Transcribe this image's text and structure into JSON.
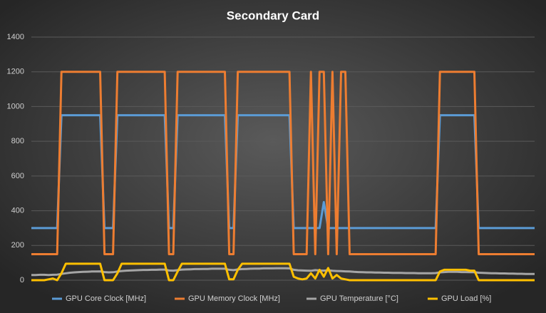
{
  "chart_data": {
    "type": "line",
    "title": "Secondary Card",
    "categories": [
      null,
      null,
      null,
      null,
      null,
      null,
      null,
      null,
      null,
      null,
      null,
      null,
      null,
      null,
      null,
      null,
      null,
      null,
      null,
      null,
      null,
      null,
      null,
      null,
      null,
      null,
      null,
      null,
      null,
      null,
      null,
      null,
      null,
      null,
      null,
      null,
      null,
      null,
      null,
      null,
      null,
      null,
      null,
      null,
      null,
      null,
      null,
      null,
      null,
      null,
      null,
      null,
      null,
      null,
      null,
      null,
      null,
      null,
      null,
      null,
      null,
      null,
      null,
      null,
      null,
      null,
      null,
      null,
      null,
      null,
      null,
      null,
      null,
      null,
      null,
      null,
      null,
      null,
      null,
      null,
      null,
      null,
      null,
      null,
      null,
      null,
      null,
      null,
      null,
      null,
      null,
      null,
      null,
      null,
      null,
      null,
      null,
      null,
      null,
      null,
      null,
      null,
      null,
      null,
      null,
      null,
      null,
      null,
      null,
      null,
      null,
      null,
      null,
      null,
      null,
      null,
      null,
      null
    ],
    "ylim": [
      0,
      1400
    ],
    "yticks": [
      0,
      200,
      400,
      600,
      800,
      1000,
      1200,
      1400
    ],
    "grid": true,
    "legend": "bottom",
    "series": [
      {
        "name": "GPU Core Clock [MHz]",
        "color": "#5b9bd5",
        "values": [
          300,
          300,
          300,
          300,
          300,
          300,
          300,
          950,
          950,
          950,
          950,
          950,
          950,
          950,
          950,
          950,
          950,
          300,
          300,
          300,
          950,
          950,
          950,
          950,
          950,
          950,
          950,
          950,
          950,
          950,
          950,
          950,
          300,
          300,
          950,
          950,
          950,
          950,
          950,
          950,
          950,
          950,
          950,
          950,
          950,
          950,
          300,
          300,
          950,
          950,
          950,
          950,
          950,
          950,
          950,
          950,
          950,
          950,
          950,
          950,
          950,
          300,
          300,
          300,
          300,
          300,
          300,
          300,
          450,
          300,
          300,
          300,
          300,
          300,
          300,
          300,
          300,
          300,
          300,
          300,
          300,
          300,
          300,
          300,
          300,
          300,
          300,
          300,
          300,
          300,
          300,
          300,
          300,
          300,
          300,
          950,
          950,
          950,
          950,
          950,
          950,
          950,
          950,
          950,
          300,
          300,
          300,
          300,
          300,
          300,
          300,
          300,
          300,
          300,
          300,
          300,
          300,
          300
        ]
      },
      {
        "name": "GPU Memory Clock [MHz]",
        "color": "#ed7d31",
        "values": [
          150,
          150,
          150,
          150,
          150,
          150,
          150,
          1200,
          1200,
          1200,
          1200,
          1200,
          1200,
          1200,
          1200,
          1200,
          1200,
          150,
          150,
          150,
          1200,
          1200,
          1200,
          1200,
          1200,
          1200,
          1200,
          1200,
          1200,
          1200,
          1200,
          1200,
          150,
          150,
          1200,
          1200,
          1200,
          1200,
          1200,
          1200,
          1200,
          1200,
          1200,
          1200,
          1200,
          1200,
          150,
          150,
          1200,
          1200,
          1200,
          1200,
          1200,
          1200,
          1200,
          1200,
          1200,
          1200,
          1200,
          1200,
          1200,
          150,
          150,
          150,
          150,
          1200,
          150,
          1200,
          1200,
          150,
          1200,
          150,
          1200,
          1200,
          150,
          150,
          150,
          150,
          150,
          150,
          150,
          150,
          150,
          150,
          150,
          150,
          150,
          150,
          150,
          150,
          150,
          150,
          150,
          150,
          150,
          1200,
          1200,
          1200,
          1200,
          1200,
          1200,
          1200,
          1200,
          1200,
          150,
          150,
          150,
          150,
          150,
          150,
          150,
          150,
          150,
          150,
          150,
          150,
          150,
          150
        ]
      },
      {
        "name": "GPU Temperature [°C]",
        "color": "#a5a5a5",
        "values": [
          30,
          30,
          31,
          31,
          30,
          31,
          32,
          36,
          40,
          43,
          45,
          47,
          48,
          49,
          50,
          50,
          51,
          47,
          45,
          46,
          50,
          53,
          55,
          56,
          57,
          58,
          59,
          59,
          60,
          60,
          61,
          61,
          56,
          55,
          58,
          61,
          62,
          63,
          64,
          64,
          65,
          65,
          66,
          66,
          66,
          66,
          60,
          58,
          62,
          64,
          65,
          66,
          67,
          67,
          68,
          68,
          68,
          69,
          69,
          69,
          68,
          60,
          57,
          56,
          55,
          54,
          58,
          56,
          55,
          57,
          54,
          53,
          52,
          51,
          50,
          48,
          47,
          46,
          45,
          45,
          44,
          44,
          43,
          43,
          42,
          42,
          42,
          41,
          41,
          41,
          40,
          40,
          40,
          40,
          41,
          45,
          47,
          48,
          48,
          48,
          47,
          47,
          46,
          46,
          43,
          42,
          41,
          40,
          40,
          39,
          39,
          38,
          38,
          37,
          37,
          36,
          36,
          36
        ]
      },
      {
        "name": "GPU Load [%]",
        "color": "#ffc000",
        "values": [
          0,
          0,
          0,
          0,
          5,
          10,
          0,
          40,
          95,
          95,
          95,
          95,
          95,
          95,
          95,
          95,
          95,
          0,
          0,
          0,
          40,
          95,
          95,
          95,
          95,
          95,
          95,
          95,
          95,
          95,
          95,
          95,
          0,
          0,
          50,
          95,
          95,
          95,
          95,
          95,
          95,
          95,
          95,
          95,
          95,
          95,
          5,
          5,
          60,
          95,
          95,
          95,
          95,
          95,
          95,
          95,
          95,
          95,
          95,
          95,
          95,
          20,
          10,
          5,
          10,
          40,
          10,
          60,
          20,
          70,
          10,
          30,
          10,
          5,
          0,
          0,
          0,
          0,
          0,
          0,
          0,
          0,
          0,
          0,
          0,
          0,
          0,
          0,
          0,
          0,
          0,
          0,
          0,
          0,
          0,
          50,
          60,
          60,
          60,
          60,
          60,
          60,
          55,
          55,
          0,
          0,
          0,
          0,
          0,
          0,
          0,
          0,
          0,
          0,
          0,
          0,
          0,
          0
        ]
      }
    ]
  }
}
